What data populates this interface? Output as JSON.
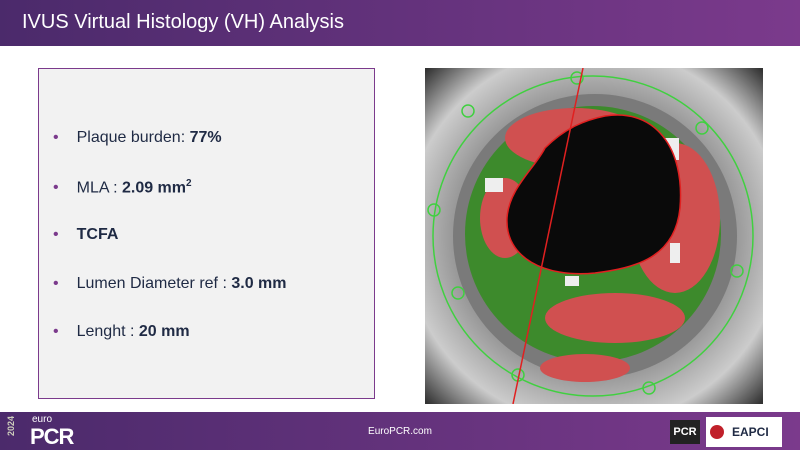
{
  "header": {
    "title": "IVUS Virtual Histology (VH) Analysis"
  },
  "bullets": [
    {
      "label": "Plaque burden: ",
      "value": "77%"
    },
    {
      "label": "MLA : ",
      "value": "2.09 mm",
      "superscript": "2"
    },
    {
      "label": "",
      "value": "TCFA"
    },
    {
      "label": "Lumen Diameter ref : ",
      "value": "3.0 mm"
    },
    {
      "label": "Lenght : ",
      "value": "20 mm"
    }
  ],
  "footer": {
    "year": "2024",
    "brand_top": "euro",
    "brand": "PCR",
    "url": "EuroPCR.com",
    "logo_pcr": "PCR",
    "logo_eapci": "EAPCI"
  }
}
